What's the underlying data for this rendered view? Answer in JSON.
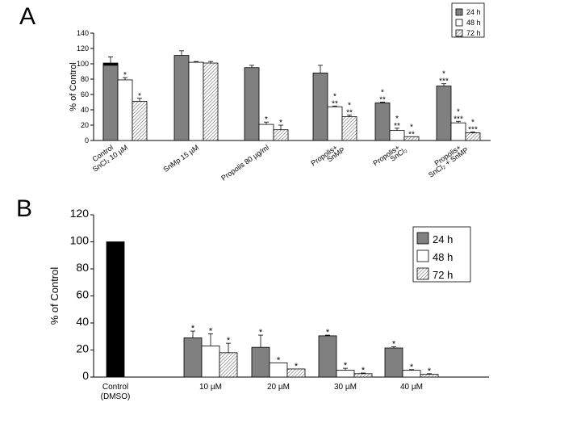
{
  "colors": {
    "24h": "#808080",
    "48h": "#ffffff",
    "72h": "hatch",
    "control": "#000000"
  },
  "chart_data": [
    {
      "panel": "A",
      "type": "bar",
      "ylabel": "% of Control",
      "ylim": [
        0,
        140
      ],
      "yticks": [
        0,
        20,
        40,
        60,
        80,
        100,
        120,
        140
      ],
      "legend_position": "top-right",
      "legend": [
        "24 h",
        "48 h",
        "72 h"
      ],
      "groups": [
        {
          "label": [
            "Control"
          ],
          "bars": [
            {
              "series": "control",
              "value": 101,
              "err": 0,
              "sig": ""
            }
          ]
        },
        {
          "label": [
            "SnCl₂ 10 µM"
          ],
          "bars": [
            {
              "series": "24h",
              "value": 98,
              "err": 11,
              "sig": ""
            },
            {
              "series": "48h",
              "value": 79,
              "err": 3,
              "sig": "*"
            },
            {
              "series": "72h",
              "value": 51,
              "err": 4,
              "sig": "*"
            }
          ]
        },
        {
          "label": [
            "SnMp 15 µM"
          ],
          "bars": [
            {
              "series": "24h",
              "value": 111,
              "err": 6,
              "sig": ""
            },
            {
              "series": "48h",
              "value": 102,
              "err": 1,
              "sig": ""
            },
            {
              "series": "72h",
              "value": 101,
              "err": 2,
              "sig": ""
            }
          ]
        },
        {
          "label": [
            "Propolis 80 µg/ml"
          ],
          "bars": [
            {
              "series": "24h",
              "value": 95,
              "err": 3,
              "sig": ""
            },
            {
              "series": "48h",
              "value": 21,
              "err": 3,
              "sig": "*"
            },
            {
              "series": "72h",
              "value": 14,
              "err": 6,
              "sig": "*"
            }
          ]
        },
        {
          "label": [
            "Propolis+",
            "SnMP"
          ],
          "bars": [
            {
              "series": "24h",
              "value": 88,
              "err": 10,
              "sig": ""
            },
            {
              "series": "48h",
              "value": 44,
              "err": 1,
              "sig": "*|**"
            },
            {
              "series": "72h",
              "value": 31,
              "err": 2,
              "sig": "*|**"
            }
          ]
        },
        {
          "label": [
            "Propolis+",
            "SnCl₂"
          ],
          "bars": [
            {
              "series": "24h",
              "value": 49,
              "err": 1,
              "sig": "*|**"
            },
            {
              "series": "48h",
              "value": 13,
              "err": 3,
              "sig": "*|**"
            },
            {
              "series": "72h",
              "value": 5,
              "err": 0,
              "sig": "*|**"
            }
          ]
        },
        {
          "label": [
            "Propolis+",
            "SnCl₂ + SnMP"
          ],
          "bars": [
            {
              "series": "24h",
              "value": 71,
              "err": 3,
              "sig": "*|***"
            },
            {
              "series": "48h",
              "value": 23,
              "err": 2,
              "sig": "*|***"
            },
            {
              "series": "72h",
              "value": 10,
              "err": 1,
              "sig": "*|***"
            }
          ]
        }
      ]
    },
    {
      "panel": "B",
      "type": "bar",
      "ylabel": "% of Control",
      "ylim": [
        0,
        120
      ],
      "yticks": [
        0,
        20,
        40,
        60,
        80,
        100,
        120
      ],
      "legend_position": "right",
      "legend": [
        "24 h",
        "48 h",
        "72 h"
      ],
      "groups": [
        {
          "label": [
            "Control",
            "(DMSO)"
          ],
          "bars": [
            {
              "series": "control",
              "value": 100,
              "err": 0,
              "sig": ""
            }
          ]
        },
        {
          "label": [
            "10 µM"
          ],
          "bars": [
            {
              "series": "24h",
              "value": 29,
              "err": 5,
              "sig": "*"
            },
            {
              "series": "48h",
              "value": 23,
              "err": 9,
              "sig": "*"
            },
            {
              "series": "72h",
              "value": 18,
              "err": 7,
              "sig": "*"
            }
          ]
        },
        {
          "label": [
            "20 µM"
          ],
          "bars": [
            {
              "series": "24h",
              "value": 22,
              "err": 9,
              "sig": "*"
            },
            {
              "series": "48h",
              "value": 10.5,
              "err": 0,
              "sig": "*"
            },
            {
              "series": "72h",
              "value": 6,
              "err": 0,
              "sig": "*"
            }
          ]
        },
        {
          "label": [
            "30 µM"
          ],
          "bars": [
            {
              "series": "24h",
              "value": 30.5,
              "err": 0.5,
              "sig": "*"
            },
            {
              "series": "48h",
              "value": 5,
              "err": 1.5,
              "sig": "*"
            },
            {
              "series": "72h",
              "value": 2.5,
              "err": 0.5,
              "sig": "*"
            }
          ]
        },
        {
          "label": [
            "40 µM"
          ],
          "bars": [
            {
              "series": "24h",
              "value": 21.5,
              "err": 1,
              "sig": "*"
            },
            {
              "series": "48h",
              "value": 5,
              "err": 0.5,
              "sig": "*"
            },
            {
              "series": "72h",
              "value": 2,
              "err": 0.5,
              "sig": "*"
            }
          ]
        }
      ]
    }
  ]
}
